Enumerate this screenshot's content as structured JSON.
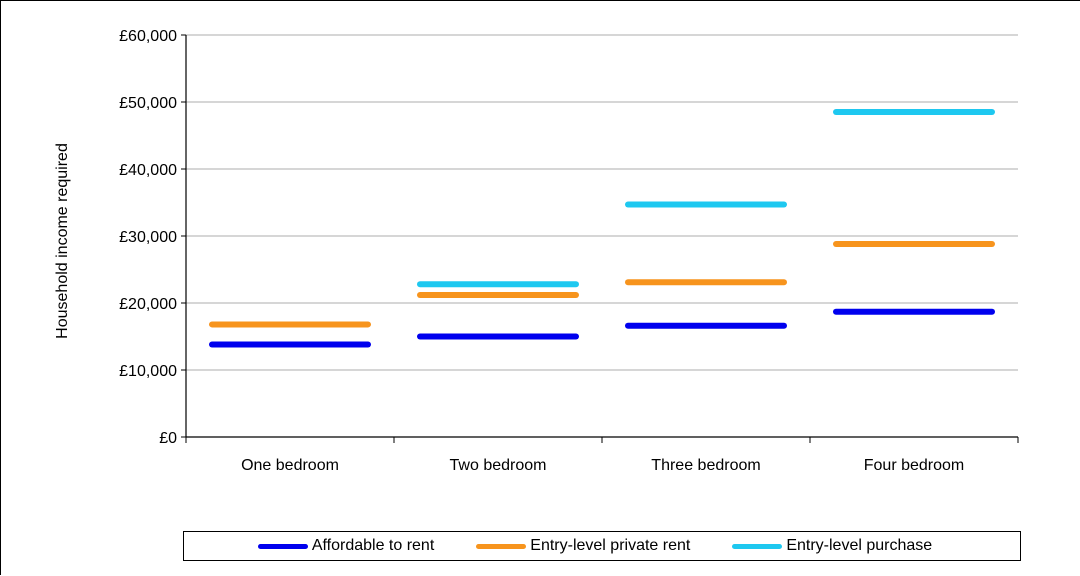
{
  "chart_data": {
    "type": "line",
    "categories": [
      "One bedroom",
      "Two bedroom",
      "Three bedroom",
      "Four bedroom"
    ],
    "series": [
      {
        "name": "Affordable to rent",
        "color": "#0000ee",
        "values": [
          13800,
          15000,
          16600,
          18700
        ]
      },
      {
        "name": "Entry-level private rent",
        "color": "#f7941d",
        "values": [
          16800,
          21200,
          23100,
          28800
        ]
      },
      {
        "name": "Entry-level purchase",
        "color": "#1ec8f0",
        "values": [
          null,
          22800,
          34700,
          48500
        ]
      }
    ],
    "ylabel": "Household income required",
    "ylim": [
      0,
      60000
    ],
    "yticks": [
      0,
      10000,
      20000,
      30000,
      40000,
      50000,
      60000
    ],
    "ytick_labels": [
      "£0",
      "£10,000",
      "£20,000",
      "£30,000",
      "£40,000",
      "£50,000",
      "£60,000"
    ],
    "grid": true,
    "legend": "bottom"
  }
}
